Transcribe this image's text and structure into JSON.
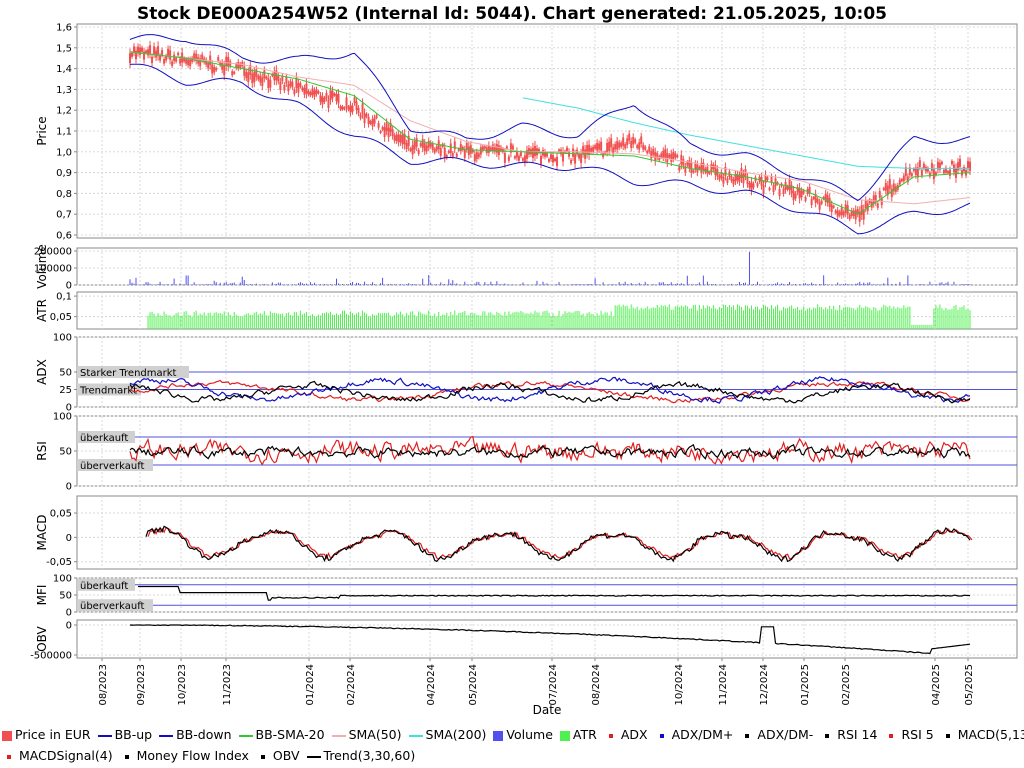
{
  "title": "Stock DE000A254W52 (Internal Id: 5044). Chart generated: 21.05.2025, 10:05",
  "x_axis": {
    "label": "Date",
    "ticks": [
      "08/2023",
      "09/2023",
      "10/2023",
      "11/2023",
      "01/2024",
      "02/2024",
      "04/2024",
      "05/2024",
      "07/2024",
      "08/2024",
      "10/2024",
      "11/2024",
      "12/2024",
      "01/2025",
      "02/2025",
      "04/2025",
      "05/2025"
    ]
  },
  "panels": {
    "price": {
      "label": "Price",
      "ticks": [
        "1,6",
        "1,5",
        "1,4",
        "1,3",
        "1,2",
        "1,1",
        "1,0",
        "0,9",
        "0,8",
        "0,7",
        "0,6"
      ]
    },
    "volume": {
      "label": "Volume",
      "ticks": [
        "200000",
        "100000",
        "0"
      ]
    },
    "atr": {
      "label": "ATR",
      "ticks": [
        "0,1",
        "0,05"
      ]
    },
    "adx": {
      "label": "ADX",
      "ticks": [
        "100",
        "50",
        "25",
        "0"
      ],
      "bands": [
        "Starker Trendmarkt",
        "Trendmarkt"
      ]
    },
    "rsi": {
      "label": "RSI",
      "ticks": [
        "100",
        "50",
        "0"
      ],
      "bands": [
        "überkauft",
        "überverkauft"
      ]
    },
    "macd": {
      "label": "MACD",
      "ticks": [
        "0,05",
        "0",
        "-0,05"
      ]
    },
    "mfi": {
      "label": "MFI",
      "ticks": [
        "100",
        "50",
        "0"
      ],
      "bands": [
        "überkauft",
        "überverkauft"
      ]
    },
    "obv": {
      "label": "OBV",
      "ticks": [
        "0",
        "-500000"
      ]
    }
  },
  "legend": [
    {
      "label": "Price in EUR",
      "color": "#f05050",
      "kind": "box"
    },
    {
      "label": "BB-up",
      "color": "#1010c0",
      "kind": "line"
    },
    {
      "label": "BB-down",
      "color": "#1010c0",
      "kind": "line"
    },
    {
      "label": "BB-SMA-20",
      "color": "#30c830",
      "kind": "line"
    },
    {
      "label": "SMA(50)",
      "color": "#f0b0b0",
      "kind": "line"
    },
    {
      "label": "SMA(200)",
      "color": "#40e0e0",
      "kind": "line"
    },
    {
      "label": "Volume",
      "color": "#5050f0",
      "kind": "box"
    },
    {
      "label": "ATR",
      "color": "#50f050",
      "kind": "box"
    },
    {
      "label": "ADX",
      "color": "#e02020",
      "kind": "dot"
    },
    {
      "label": "ADX/DM+",
      "color": "#1010c0",
      "kind": "dot"
    },
    {
      "label": "ADX/DM-",
      "color": "#000000",
      "kind": "dot"
    },
    {
      "label": "RSI 14",
      "color": "#000000",
      "kind": "dot"
    },
    {
      "label": "RSI 5",
      "color": "#e02020",
      "kind": "dot"
    },
    {
      "label": "MACD(5,13)",
      "color": "#000000",
      "kind": "dot"
    },
    {
      "label": "MACDSignal(4)",
      "color": "#e02020",
      "kind": "dot"
    },
    {
      "label": "Money Flow Index",
      "color": "#000000",
      "kind": "dot"
    },
    {
      "label": "OBV",
      "color": "#000000",
      "kind": "dot"
    },
    {
      "label": "Trend(3,30,60)",
      "color": "#000000",
      "kind": "line"
    }
  ],
  "colors": {
    "price": "#f05050",
    "bb": "#1010c0",
    "bbsma": "#30c830",
    "sma50": "#f0b0b0",
    "sma200": "#40e0e0",
    "volume": "#5050f0",
    "atr": "#50f050",
    "red": "#e02020",
    "blue": "#1010c0",
    "black": "#000000"
  },
  "chart_data": {
    "type": "line",
    "title": "Stock DE000A254W52 (Internal Id: 5044). Chart generated: 21.05.2025, 10:05",
    "xlabel": "Date",
    "x": [
      "09/2023",
      "10/2023",
      "11/2023",
      "01/2024",
      "02/2024",
      "04/2024",
      "05/2024",
      "07/2024",
      "08/2024",
      "10/2024",
      "11/2024",
      "12/2024",
      "01/2025",
      "02/2025",
      "04/2025",
      "05/2025"
    ],
    "series": [
      {
        "name": "Price in EUR",
        "values": [
          1.48,
          1.44,
          1.4,
          1.3,
          1.22,
          1.02,
          1.0,
          0.99,
          0.98,
          1.05,
          0.92,
          0.87,
          0.8,
          0.69,
          0.92,
          0.92
        ]
      },
      {
        "name": "BB-up",
        "values": [
          1.54,
          1.55,
          1.45,
          1.44,
          1.48,
          1.12,
          1.06,
          1.12,
          1.08,
          1.24,
          1.03,
          0.98,
          0.88,
          0.78,
          1.06,
          1.06
        ]
      },
      {
        "name": "BB-down",
        "values": [
          1.42,
          1.34,
          1.33,
          1.22,
          1.08,
          0.96,
          0.95,
          0.93,
          0.93,
          0.86,
          0.84,
          0.8,
          0.72,
          0.62,
          0.7,
          0.74
        ]
      },
      {
        "name": "BB-SMA-20",
        "values": [
          1.48,
          1.45,
          1.4,
          1.35,
          1.27,
          1.06,
          1.01,
          1.0,
          0.99,
          0.98,
          0.92,
          0.88,
          0.82,
          0.7,
          0.88,
          0.9
        ]
      },
      {
        "name": "SMA(50)",
        "values": [
          1.48,
          1.45,
          1.42,
          1.36,
          1.32,
          1.15,
          1.05,
          1.0,
          1.0,
          0.99,
          0.95,
          0.9,
          0.86,
          0.77,
          0.75,
          0.78
        ]
      },
      {
        "name": "SMA(200)",
        "values": [
          null,
          null,
          null,
          null,
          null,
          null,
          null,
          1.26,
          1.21,
          1.14,
          1.08,
          1.03,
          0.98,
          0.93,
          0.92,
          0.92
        ]
      }
    ],
    "ylabel": "Price",
    "ylim": [
      0.6,
      1.6
    ]
  }
}
